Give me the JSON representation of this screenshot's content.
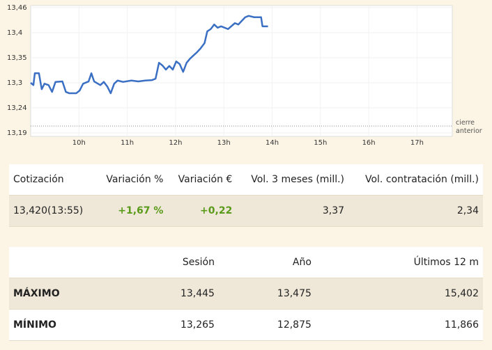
{
  "chart_data": {
    "type": "line",
    "line_color": "#3a6fc4",
    "grid": true,
    "x": [
      9.0,
      9.057,
      9.086,
      9.171,
      9.229,
      9.286,
      9.371,
      9.443,
      9.514,
      9.657,
      9.729,
      9.8,
      9.943,
      10.014,
      10.086,
      10.2,
      10.257,
      10.314,
      10.443,
      10.514,
      10.586,
      10.657,
      10.729,
      10.8,
      10.914,
      11.086,
      11.229,
      11.371,
      11.514,
      11.586,
      11.657,
      11.729,
      11.8,
      11.871,
      11.943,
      12.014,
      12.086,
      12.157,
      12.229,
      12.3,
      12.371,
      12.443,
      12.514,
      12.6,
      12.657,
      12.729,
      12.8,
      12.871,
      12.943,
      13.086,
      13.229,
      13.3,
      13.371,
      13.443,
      13.514,
      13.629,
      13.771,
      13.8,
      13.914
    ],
    "values": [
      13.295,
      13.29,
      13.316,
      13.316,
      13.281,
      13.293,
      13.29,
      13.275,
      13.297,
      13.298,
      13.275,
      13.272,
      13.272,
      13.278,
      13.293,
      13.298,
      13.316,
      13.298,
      13.29,
      13.297,
      13.287,
      13.272,
      13.293,
      13.3,
      13.297,
      13.3,
      13.298,
      13.3,
      13.301,
      13.304,
      13.339,
      13.333,
      13.324,
      13.332,
      13.324,
      13.342,
      13.336,
      13.319,
      13.339,
      13.348,
      13.355,
      13.362,
      13.37,
      13.382,
      13.408,
      13.413,
      13.423,
      13.416,
      13.419,
      13.413,
      13.426,
      13.423,
      13.431,
      13.439,
      13.442,
      13.439,
      13.439,
      13.419,
      13.419
    ],
    "xlim": [
      9,
      17.73
    ],
    "xticks": [
      {
        "value": 10,
        "label": "10h"
      },
      {
        "value": 11,
        "label": "11h"
      },
      {
        "value": 12,
        "label": "12h"
      },
      {
        "value": 13,
        "label": "13h"
      },
      {
        "value": 14,
        "label": "14h"
      },
      {
        "value": 15,
        "label": "15h"
      },
      {
        "value": 16,
        "label": "16h"
      },
      {
        "value": 17,
        "label": "17h"
      }
    ],
    "ylim": [
      13.185,
      13.46
    ],
    "yticks": [
      {
        "value": 13.46,
        "label": "13,46"
      },
      {
        "value": 13.405,
        "label": "13,4"
      },
      {
        "value": 13.35,
        "label": "13,35"
      },
      {
        "value": 13.295,
        "label": "13,3"
      },
      {
        "value": 13.24,
        "label": "13,24"
      },
      {
        "value": 13.185,
        "label": "13,19"
      }
    ],
    "reference_line": {
      "label": "cierre anterior",
      "value": 13.2
    }
  },
  "quote_table": {
    "headers": [
      "Cotización",
      "Variación %",
      "Variación €",
      "Vol. 3 meses (mill.)",
      "Vol. contratación (mill.)"
    ],
    "row": [
      "13,420(13:55)",
      "+1,67 %",
      "+0,22",
      "3,37",
      "2,34"
    ]
  },
  "range_table": {
    "headers": [
      "Sesión",
      "Año",
      "Últimos 12 m"
    ],
    "rows": [
      [
        "MÁXIMO",
        "13,445",
        "13,475",
        "15,402"
      ],
      [
        "MÍNIMO",
        "13,265",
        "12,875",
        "11,866"
      ]
    ]
  }
}
